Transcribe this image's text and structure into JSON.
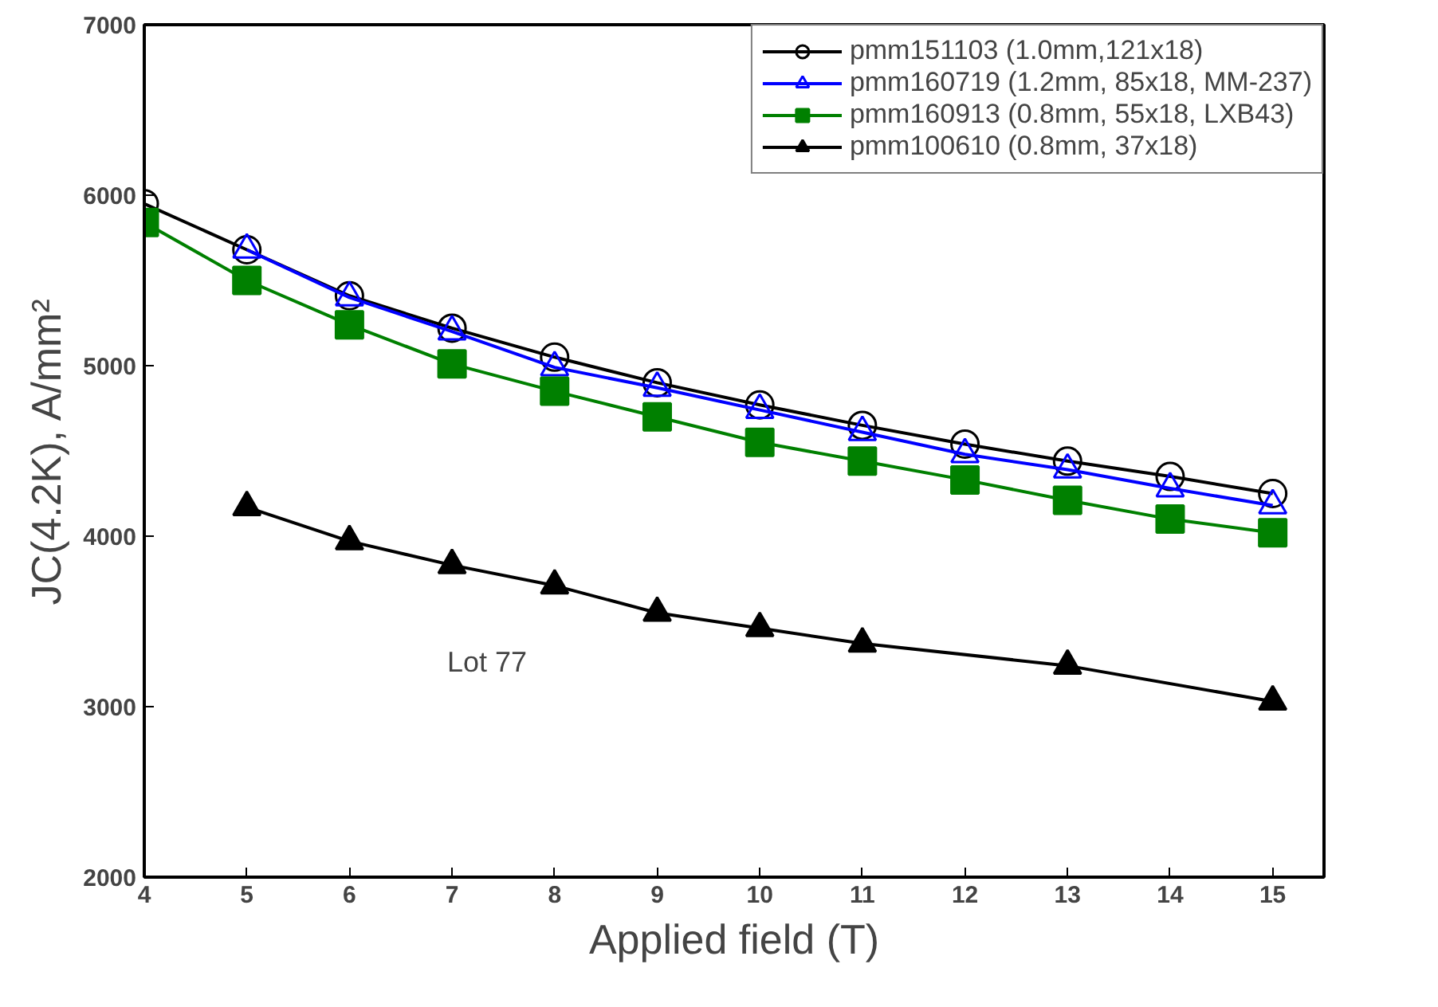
{
  "chart_data": {
    "type": "line",
    "xlabel": "Applied field (T)",
    "ylabel": "JC(4.2K), A/mm²",
    "xlim": [
      4,
      15.5
    ],
    "xticks": [
      4,
      5,
      6,
      7,
      8,
      9,
      10,
      11,
      12,
      13,
      14,
      15
    ],
    "ylim": [
      2000,
      7000
    ],
    "yticks": [
      2000,
      3000,
      4000,
      5000,
      6000,
      7000
    ],
    "grid": false,
    "legend": "top right",
    "annotations": [
      "Lot 77"
    ],
    "series": [
      {
        "name": "pmm151103 (1.0mm,121x18)",
        "color": "#000000",
        "marker": "circle",
        "x": [
          4,
          5,
          6,
          7,
          8,
          9,
          10,
          11,
          12,
          13,
          14,
          15
        ],
        "values": [
          5950,
          5680,
          5410,
          5220,
          5050,
          4900,
          4770,
          4650,
          4540,
          4440,
          4350,
          4250
        ]
      },
      {
        "name": "pmm160719 (1.2mm, 85x18, MM-237)",
        "color": "#0000ff",
        "marker": "triangle",
        "x": [
          5,
          6,
          7,
          8,
          9,
          10,
          11,
          12,
          13,
          14,
          15
        ],
        "values": [
          5680,
          5400,
          5200,
          4990,
          4870,
          4740,
          4610,
          4480,
          4390,
          4280,
          4180
        ]
      },
      {
        "name": "pmm160913 (0.8mm, 55x18, LXB43)",
        "color": "#008000",
        "marker": "square",
        "x": [
          4,
          5,
          6,
          7,
          8,
          9,
          10,
          11,
          12,
          13,
          14,
          15
        ],
        "values": [
          5840,
          5500,
          5240,
          5010,
          4850,
          4700,
          4550,
          4440,
          4330,
          4210,
          4100,
          4020
        ]
      },
      {
        "name": "pmm100610 (0.8mm, 37x18)",
        "color": "#000000",
        "marker": "triangle",
        "x": [
          5,
          6,
          7,
          8,
          9,
          10,
          11,
          13,
          15
        ],
        "values": [
          4170,
          3970,
          3830,
          3710,
          3550,
          3460,
          3370,
          3240,
          3030
        ]
      }
    ]
  }
}
